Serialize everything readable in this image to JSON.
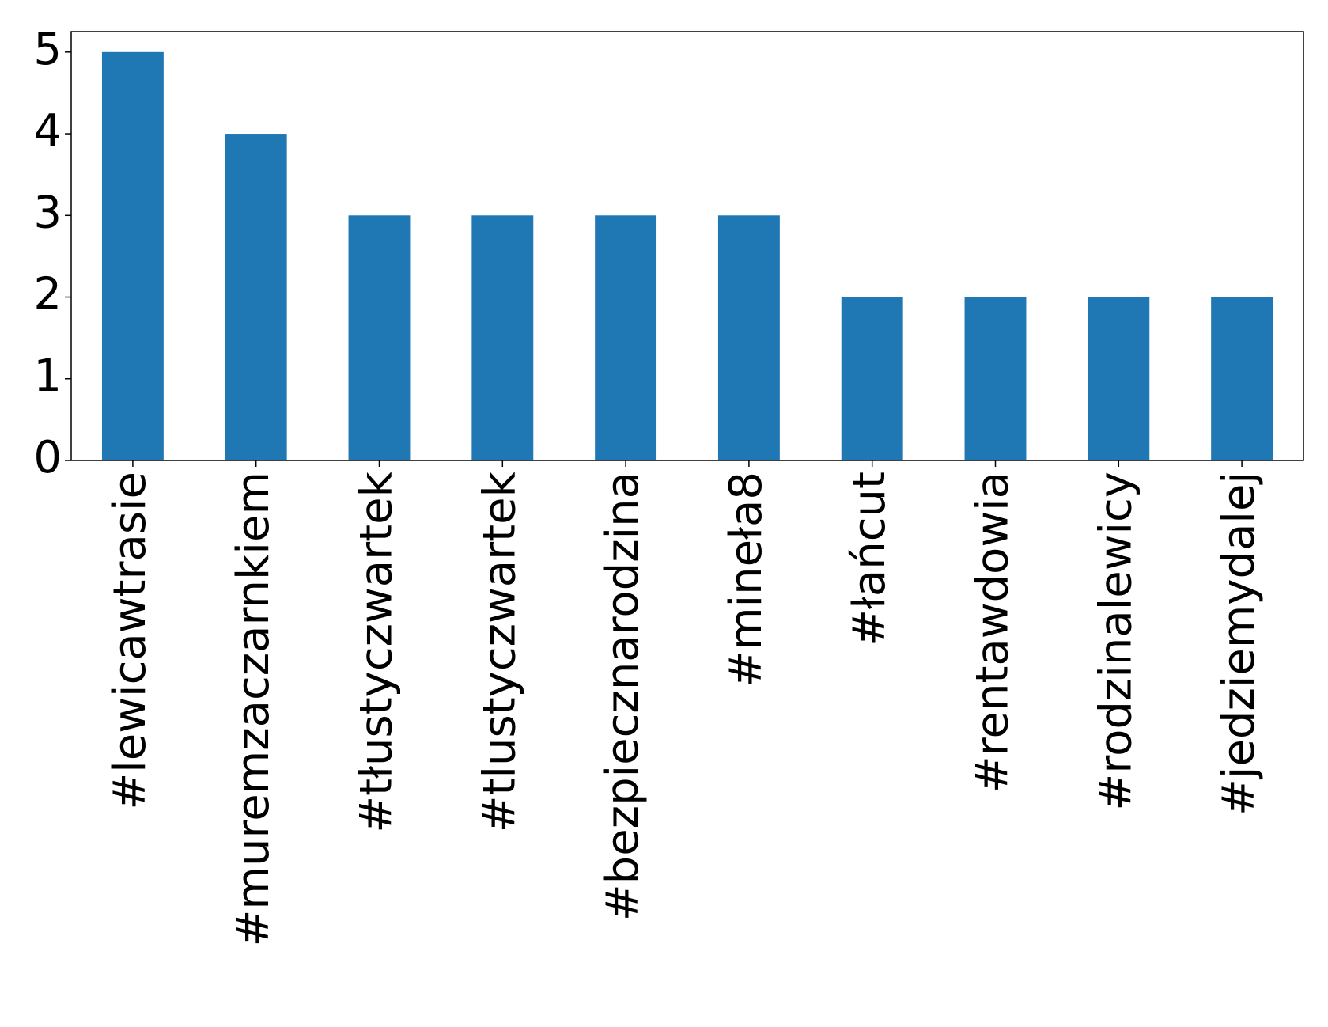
{
  "chart_data": {
    "type": "bar",
    "categories": [
      "#lewicawtrasie",
      "#muremzaczarnkiem",
      "#tłustyczwartek",
      "#tlustyczwartek",
      "#bezpiecznarodzina",
      "#mineła8",
      "#łańcut",
      "#rentawdowia",
      "#rodzinalewicy",
      "#jedziemydalej"
    ],
    "values": [
      5,
      4,
      3,
      3,
      3,
      3,
      2,
      2,
      2,
      2
    ],
    "color": "#1f77b4",
    "ylim": [
      0,
      5.25
    ],
    "yticks": [
      0,
      1,
      2,
      3,
      4,
      5
    ],
    "grid": false
  }
}
